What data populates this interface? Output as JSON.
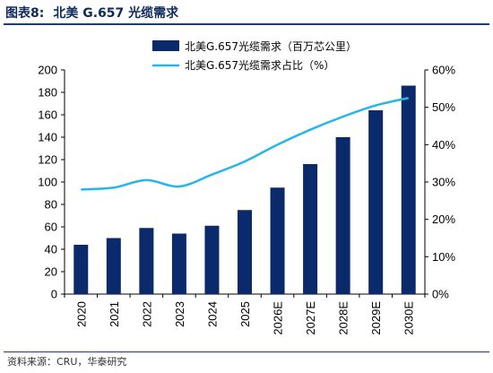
{
  "header": {
    "figure_label": "图表8:",
    "title": "北美 G.657 光缆需求"
  },
  "source": "资料来源：CRU，华泰研究",
  "colors": {
    "bar": "#0b2a6b",
    "line": "#26b6ea",
    "rule": "#1f3a78",
    "title": "#0f2a5c"
  },
  "chart_data": {
    "type": "bar",
    "categories": [
      "2020",
      "2021",
      "2022",
      "2023",
      "2024",
      "2025",
      "2026E",
      "2027E",
      "2028E",
      "2029E",
      "2030E"
    ],
    "series": [
      {
        "name": "北美G.657光缆需求（百万芯公里）",
        "type": "bar",
        "axis": "left",
        "values": [
          44,
          50,
          59,
          54,
          61,
          75,
          95,
          116,
          140,
          164,
          186
        ]
      },
      {
        "name": "北美G.657光缆需求占比（%）",
        "type": "line",
        "axis": "right",
        "values": [
          28,
          28.5,
          30.5,
          28.8,
          32,
          35.5,
          40,
          44,
          47.5,
          50.5,
          52.5
        ]
      }
    ],
    "y_left": {
      "min": 0,
      "max": 200,
      "ticks": [
        "0",
        "20",
        "40",
        "60",
        "80",
        "100",
        "120",
        "140",
        "160",
        "180",
        "200"
      ]
    },
    "y_right": {
      "min": 0,
      "max": 60,
      "ticks": [
        "0%",
        "10%",
        "20%",
        "30%",
        "40%",
        "50%",
        "60%"
      ]
    },
    "grid": false,
    "legend": "top"
  }
}
